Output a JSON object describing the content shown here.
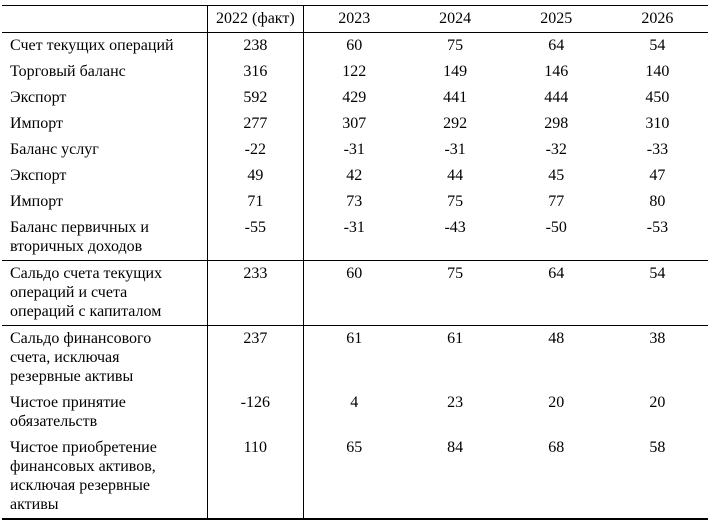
{
  "table": {
    "header": {
      "label_col": "",
      "years": [
        "2022 (факт)",
        "2023",
        "2024",
        "2025",
        "2026"
      ]
    },
    "rows": [
      {
        "label": "Счет текущих операций",
        "values": [
          "238",
          "60",
          "75",
          "64",
          "54"
        ],
        "separator_after": false
      },
      {
        "label": "Торговый баланс",
        "values": [
          "316",
          "122",
          "149",
          "146",
          "140"
        ],
        "separator_after": false
      },
      {
        "label": "Экспорт",
        "values": [
          "592",
          "429",
          "441",
          "444",
          "450"
        ],
        "separator_after": false
      },
      {
        "label": "Импорт",
        "values": [
          "277",
          "307",
          "292",
          "298",
          "310"
        ],
        "separator_after": false
      },
      {
        "label": "Баланс услуг",
        "values": [
          "-22",
          "-31",
          "-31",
          "-32",
          "-33"
        ],
        "separator_after": false
      },
      {
        "label": "Экспорт",
        "values": [
          "49",
          "42",
          "44",
          "45",
          "47"
        ],
        "separator_after": false
      },
      {
        "label": "Импорт",
        "values": [
          "71",
          "73",
          "75",
          "77",
          "80"
        ],
        "separator_after": false
      },
      {
        "label": "Баланс первичных и вторичных доходов",
        "values": [
          "-55",
          "-31",
          "-43",
          "-50",
          "-53"
        ],
        "separator_after": true
      },
      {
        "label": "Сальдо счета текущих операций и счета операций с капиталом",
        "values": [
          "233",
          "60",
          "75",
          "64",
          "54"
        ],
        "separator_after": true
      },
      {
        "label": "Сальдо финансового счета, исключая резервные активы",
        "values": [
          "237",
          "61",
          "61",
          "48",
          "38"
        ],
        "separator_after": false
      },
      {
        "label": "Чистое принятие обязательств",
        "values": [
          "-126",
          "4",
          "23",
          "20",
          "20"
        ],
        "separator_after": false
      },
      {
        "label": "Чистое приобретение финансовых активов, исключая резервные активы",
        "values": [
          "110",
          "65",
          "84",
          "68",
          "58"
        ],
        "separator_after": false
      }
    ],
    "colors": {
      "text": "#000000",
      "border": "#000000",
      "background": "#ffffff"
    }
  }
}
